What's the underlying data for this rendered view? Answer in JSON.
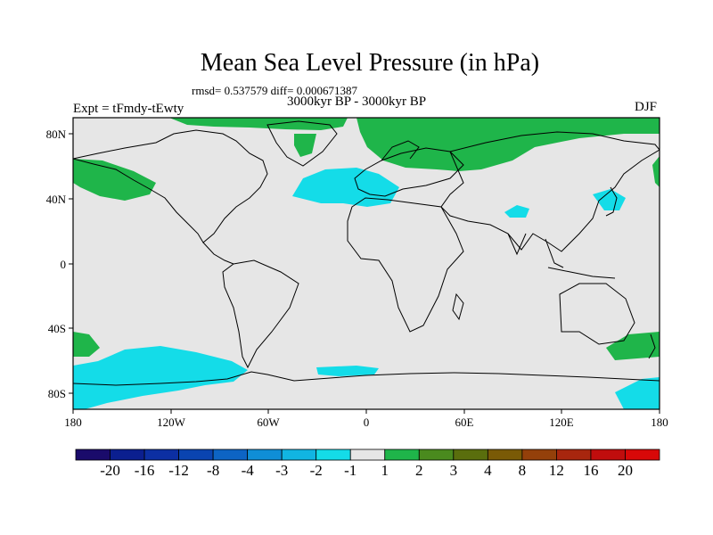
{
  "title": "Mean Sea Level Pressure (in hPa)",
  "stats": "rmsd= 0.537579  diff= 0.000671387",
  "period": "3000kyr BP - 3000kyr BP",
  "experiment": "Expt = tFmdy-tEwty",
  "season": "DJF",
  "x_ticks": [
    "180",
    "120W",
    "60W",
    "0",
    "60E",
    "120E",
    "180"
  ],
  "y_ticks": [
    "80N",
    "40N",
    "0",
    "40S",
    "80S"
  ],
  "colorbar": {
    "labels": [
      "-20",
      "-16",
      "-12",
      "-8",
      "-4",
      "-3",
      "-2",
      "-1",
      "1",
      "2",
      "3",
      "4",
      "8",
      "12",
      "16",
      "20"
    ],
    "colors": [
      "#1a0b6b",
      "#0b1f8f",
      "#0c2fa3",
      "#0a44b0",
      "#0d64c4",
      "#0f8ed6",
      "#11b5e2",
      "#14dce8",
      "#e6e6e6",
      "#1fb54a",
      "#4a8a1e",
      "#5a6e0d",
      "#7a5a06",
      "#94400a",
      "#a8260e",
      "#c00d0d",
      "#d80808"
    ]
  },
  "colors": {
    "background": "#e6e6e6",
    "positive": "#1fb54a",
    "negative": "#14dce8",
    "coast": "#000000"
  }
}
